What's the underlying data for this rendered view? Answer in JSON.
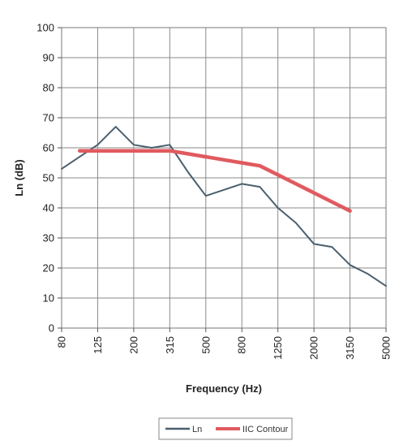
{
  "chart_data": {
    "type": "line",
    "xlabel": "Frequency (Hz)",
    "ylabel": "Ln (dB)",
    "ylim": [
      0,
      100
    ],
    "yticks": [
      0,
      10,
      20,
      30,
      40,
      50,
      60,
      70,
      80,
      90,
      100
    ],
    "x_tick_labels": [
      "80",
      "125",
      "200",
      "315",
      "500",
      "800",
      "1250",
      "2000",
      "3150",
      "5000"
    ],
    "x_bands": [
      "80",
      "100",
      "125",
      "160",
      "200",
      "250",
      "315",
      "400",
      "500",
      "630",
      "800",
      "1000",
      "1250",
      "1600",
      "2000",
      "2500",
      "3150",
      "4000",
      "5000"
    ],
    "grid": true,
    "legend_position": "bottom",
    "series": [
      {
        "name": "Ln",
        "color": "#4a5f6e",
        "x": [
          "80",
          "100",
          "125",
          "160",
          "200",
          "250",
          "315",
          "400",
          "500",
          "630",
          "800",
          "1000",
          "1250",
          "1600",
          "2000",
          "2500",
          "3150",
          "4000",
          "5000"
        ],
        "values": [
          53,
          57,
          61,
          67,
          61,
          60,
          61,
          52,
          44,
          46,
          48,
          47,
          40,
          35,
          28,
          27,
          21,
          18,
          14
        ]
      },
      {
        "name": "IIC Contour",
        "color": "#e05a5f",
        "x": [
          "100",
          "125",
          "160",
          "200",
          "250",
          "315",
          "400",
          "500",
          "630",
          "800",
          "1000",
          "1250",
          "1600",
          "2000",
          "2500",
          "3150"
        ],
        "values": [
          59,
          59,
          59,
          59,
          59,
          59,
          58,
          57,
          56,
          55,
          54,
          51,
          48,
          45,
          42,
          39
        ]
      }
    ]
  }
}
